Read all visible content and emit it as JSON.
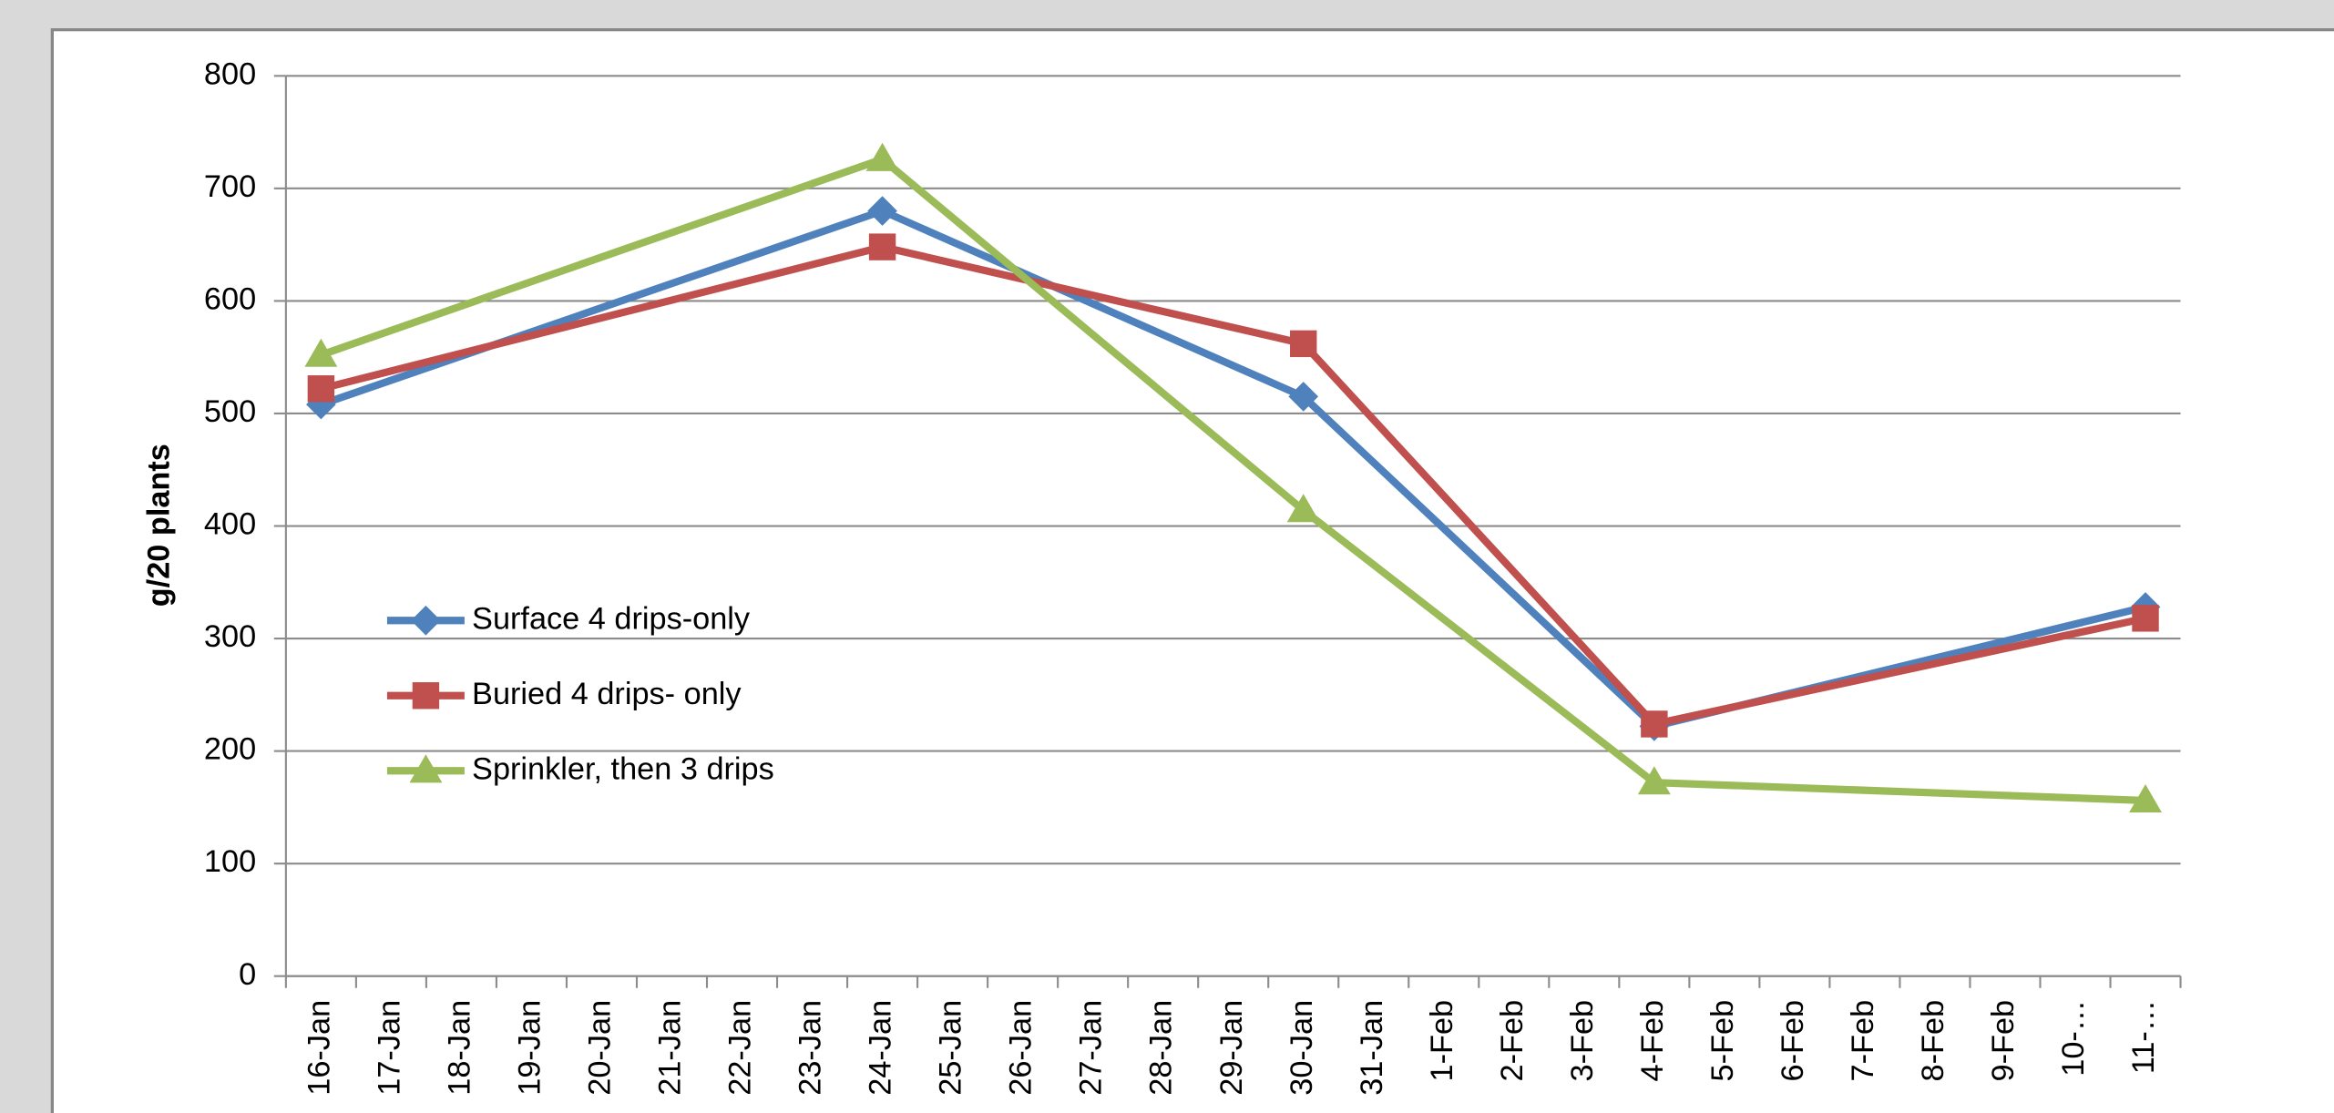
{
  "chart_data": {
    "type": "line",
    "y_label": "g/20 plants",
    "categories": [
      "16-Jan",
      "17-Jan",
      "18-Jan",
      "19-Jan",
      "20-Jan",
      "21-Jan",
      "22-Jan",
      "23-Jan",
      "24-Jan",
      "25-Jan",
      "26-Jan",
      "27-Jan",
      "28-Jan",
      "29-Jan",
      "30-Jan",
      "31-Jan",
      "1-Feb",
      "2-Feb",
      "3-Feb",
      "4-Feb",
      "5-Feb",
      "6-Feb",
      "7-Feb",
      "8-Feb",
      "9-Feb",
      "10-…",
      "11-…"
    ],
    "series": [
      {
        "name": "Surface 4 drips-only",
        "color": "#4f81bd",
        "marker": "diamond",
        "values": [
          508,
          null,
          null,
          null,
          null,
          null,
          null,
          null,
          680,
          null,
          null,
          null,
          null,
          null,
          515,
          null,
          null,
          null,
          null,
          222,
          null,
          null,
          null,
          null,
          null,
          null,
          328
        ]
      },
      {
        "name": "Buried 4 drips- only",
        "color": "#c0504d",
        "marker": "square",
        "values": [
          522,
          null,
          null,
          null,
          null,
          null,
          null,
          null,
          648,
          null,
          null,
          null,
          null,
          null,
          562,
          null,
          null,
          null,
          null,
          224,
          null,
          null,
          null,
          null,
          null,
          null,
          318
        ]
      },
      {
        "name": "Sprinkler,  then 3 drips",
        "color": "#9bbb59",
        "marker": "triangle",
        "values": [
          552,
          null,
          null,
          null,
          null,
          null,
          null,
          null,
          726,
          null,
          null,
          null,
          null,
          null,
          414,
          null,
          null,
          null,
          null,
          172,
          null,
          null,
          null,
          null,
          null,
          null,
          156
        ]
      }
    ],
    "connect_gaps": true,
    "ylim": [
      0,
      800
    ],
    "yticks": [
      0,
      100,
      200,
      300,
      400,
      500,
      600,
      700,
      800
    ],
    "grid": true,
    "legend": "left"
  }
}
